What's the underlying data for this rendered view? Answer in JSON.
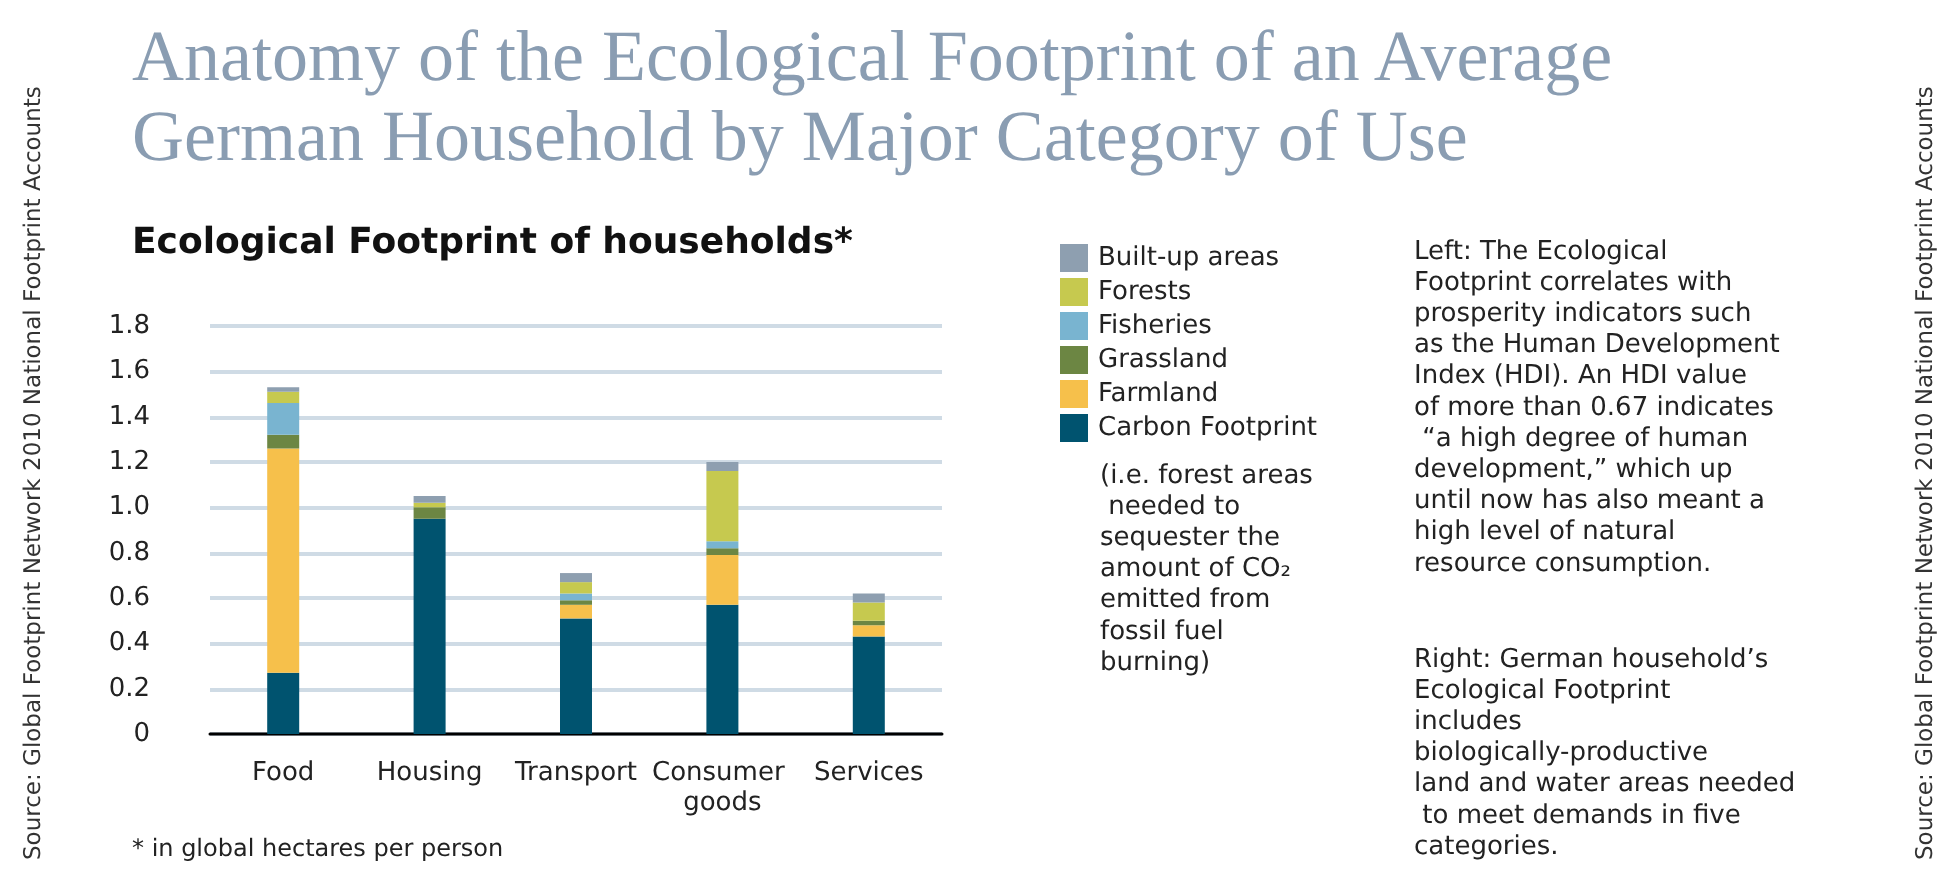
{
  "chart_data": {
    "type": "bar",
    "title": "Anatomy of the Ecological Footprint of an Average German Household by Major Category of Use",
    "subtitle": "Ecological Footprint of households*",
    "categories": [
      "Food",
      "Housing",
      "Transport",
      "Consumer goods",
      "Services"
    ],
    "stacked": true,
    "series": [
      {
        "name": "Carbon Footprint",
        "color": "#00536f",
        "values": [
          0.27,
          0.95,
          0.51,
          0.57,
          0.43
        ]
      },
      {
        "name": "Farmland",
        "color": "#f6c04b",
        "values": [
          0.99,
          0,
          0.06,
          0.22,
          0.05
        ]
      },
      {
        "name": "Grassland",
        "color": "#6c8643",
        "values": [
          0.06,
          0.05,
          0.02,
          0.03,
          0.02
        ]
      },
      {
        "name": "Fisheries",
        "color": "#79b4d0",
        "values": [
          0.14,
          0,
          0.03,
          0.03,
          0
        ]
      },
      {
        "name": "Forests",
        "color": "#c6c94f",
        "values": [
          0.05,
          0.02,
          0.05,
          0.31,
          0.08
        ]
      },
      {
        "name": "Built-up areas",
        "color": "#8e9fb0",
        "values": [
          0.02,
          0.03,
          0.04,
          0.04,
          0.04
        ]
      }
    ],
    "ylim": [
      0,
      1.8
    ],
    "yticks": [
      0,
      0.2,
      0.4,
      0.6,
      0.8,
      {
        "value": 1,
        "label": "1.0"
      },
      1.2,
      1.4,
      1.6,
      1.8
    ],
    "grid": "y",
    "legend": "right",
    "annotations": [
      "Left: The Ecological Footprint correlates with prosperity indicators such as the Human Development Index (HDI). An HDI value of more than 0.67 indicates “a high degree of human development,” which up until now has also meant a high level of natural resource consumption.",
      "Right: German household’s Ecological Footprint includes biologically-productive land and water areas needed to meet demands in five categories.",
      "* in global hectares per person",
      "(i.e. forest areas needed to sequester the amount of CO₂ emitted from fossil fuel burning)",
      "Source: Global Footprint Network 2010 National Footprint Accounts",
      "Source: Global Footprint Network 2010 National Footprint Accounts"
    ]
  }
}
